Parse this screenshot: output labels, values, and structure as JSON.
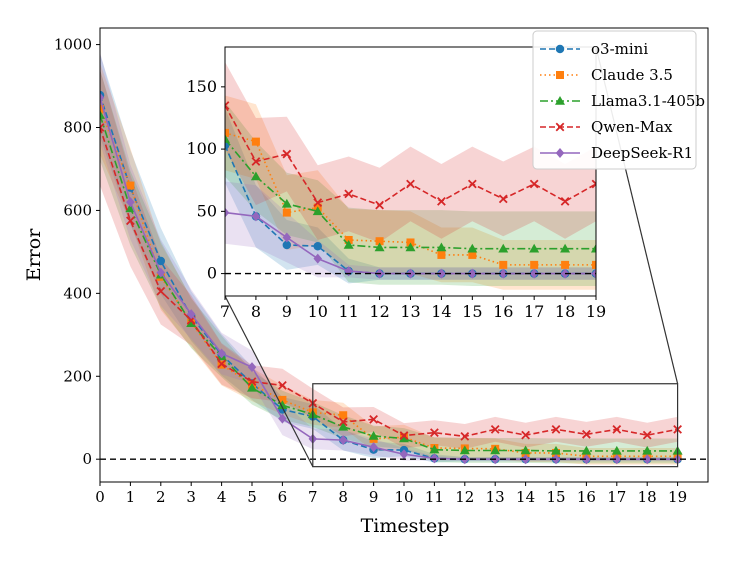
{
  "chart_data": {
    "type": "line",
    "xlabel": "Timestep",
    "ylabel": "Error",
    "xlim": [
      0,
      20
    ],
    "ylim": [
      -55,
      1040
    ],
    "xticks": [
      "0",
      "1",
      "2",
      "3",
      "4",
      "5",
      "6",
      "7",
      "8",
      "9",
      "10",
      "11",
      "12",
      "13",
      "14",
      "15",
      "16",
      "17",
      "18",
      "19"
    ],
    "yticks": [
      "0",
      "200",
      "400",
      "600",
      "800",
      "1000"
    ],
    "reference_line": 0,
    "legend_position": "top-right",
    "x": [
      0,
      1,
      2,
      3,
      4,
      5,
      6,
      7,
      8,
      9,
      10,
      11,
      12,
      13,
      14,
      15,
      16,
      17,
      18,
      19
    ],
    "series": [
      {
        "name": "o3-mini",
        "color": "#1f77b4",
        "linestyle": "dashed",
        "marker": "circle",
        "values": [
          878,
          655,
          478,
          345,
          252,
          183,
          120,
          103,
          46,
          23,
          22,
          2,
          0,
          0,
          0,
          0,
          0,
          0,
          0,
          0
        ],
        "band": [
          100,
          90,
          80,
          60,
          50,
          40,
          30,
          30,
          25,
          20,
          15,
          10,
          5,
          5,
          5,
          5,
          5,
          5,
          5,
          5
        ]
      },
      {
        "name": "Claude 3.5",
        "color": "#ff7f0e",
        "linestyle": "dotted",
        "marker": "square",
        "values": [
          845,
          660,
          440,
          330,
          228,
          180,
          143,
          113,
          106,
          49,
          53,
          27,
          26,
          25,
          15,
          15,
          7,
          7,
          7,
          7
        ],
        "band": [
          110,
          90,
          80,
          60,
          50,
          40,
          35,
          30,
          30,
          30,
          30,
          25,
          25,
          25,
          22,
          22,
          20,
          20,
          20,
          20
        ]
      },
      {
        "name": "Llama3.1-405b",
        "color": "#2ca02c",
        "linestyle": "dashdot",
        "marker": "triangle",
        "values": [
          830,
          605,
          445,
          328,
          248,
          172,
          130,
          108,
          78,
          56,
          50,
          23,
          21,
          21,
          21,
          20,
          20,
          20,
          20,
          20
        ],
        "band": [
          110,
          90,
          80,
          60,
          50,
          40,
          35,
          30,
          28,
          25,
          25,
          30,
          30,
          30,
          30,
          30,
          30,
          30,
          30,
          30
        ]
      },
      {
        "name": "Qwen-Max",
        "color": "#d62728",
        "linestyle": "dashed",
        "marker": "x",
        "values": [
          800,
          575,
          405,
          335,
          230,
          187,
          178,
          135,
          90,
          96,
          57,
          64,
          55,
          72,
          58,
          72,
          60,
          72,
          58,
          72
        ],
        "band": [
          140,
          110,
          80,
          60,
          50,
          40,
          40,
          35,
          35,
          30,
          30,
          30,
          30,
          30,
          30,
          30,
          30,
          30,
          30,
          30
        ]
      },
      {
        "name": "DeepSeek-R1",
        "color": "#9467bd",
        "linestyle": "solid",
        "marker": "diamond",
        "values": [
          872,
          620,
          450,
          350,
          255,
          222,
          98,
          49,
          46,
          29,
          12,
          2,
          0,
          0,
          0,
          0,
          0,
          0,
          0,
          0
        ],
        "band": [
          110,
          90,
          80,
          60,
          50,
          40,
          40,
          25,
          25,
          20,
          15,
          5,
          5,
          5,
          5,
          5,
          5,
          5,
          5,
          5
        ]
      }
    ],
    "inset": {
      "xlim": [
        7,
        19
      ],
      "ylim": [
        -18,
        182
      ],
      "xticks": [
        "7",
        "8",
        "9",
        "10",
        "11",
        "12",
        "13",
        "14",
        "15",
        "16",
        "17",
        "18",
        "19"
      ],
      "yticks": [
        "0",
        "50",
        "100",
        "150"
      ],
      "zoom_region": {
        "x": [
          7,
          19
        ],
        "y": [
          -18,
          182
        ]
      }
    }
  }
}
